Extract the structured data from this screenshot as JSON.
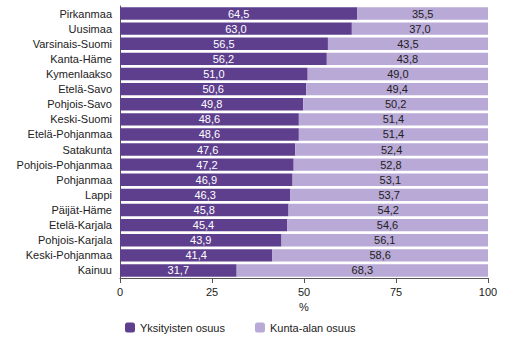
{
  "chart_data": {
    "type": "bar",
    "orientation": "horizontal",
    "stacked": true,
    "data_labels": true,
    "grid": false,
    "legend": "bottom",
    "xlabel": "%",
    "xlim": [
      0,
      100
    ],
    "xticks": [
      0,
      25,
      50,
      75,
      100
    ],
    "categories": [
      "Pirkanmaa",
      "Uusimaa",
      "Varsinais-Suomi",
      "Kanta-Häme",
      "Kymenlaakso",
      "Etelä-Savo",
      "Pohjois-Savo",
      "Keski-Suomi",
      "Etelä-Pohjanmaa",
      "Satakunta",
      "Pohjois-Pohjanmaa",
      "Pohjanmaa",
      "Lappi",
      "Päijät-Häme",
      "Etelä-Karjala",
      "Pohjois-Karjala",
      "Keski-Pohjanmaa",
      "Kainuu"
    ],
    "series": [
      {
        "name": "Yksityisten osuus",
        "color": "#5e3f8e",
        "values": [
          64.5,
          63.0,
          56.5,
          56.2,
          51.0,
          50.6,
          49.8,
          48.6,
          48.6,
          47.6,
          47.2,
          46.9,
          46.3,
          45.8,
          45.4,
          43.9,
          41.4,
          31.7
        ],
        "value_labels": [
          "64,5",
          "63,0",
          "56,5",
          "56,2",
          "51,0",
          "50,6",
          "49,8",
          "48,6",
          "48,6",
          "47,6",
          "47,2",
          "46,9",
          "46,3",
          "45,8",
          "45,4",
          "43,9",
          "41,4",
          "31,7"
        ]
      },
      {
        "name": "Kunta-alan osuus",
        "color": "#b9a9d6",
        "values": [
          35.5,
          37.0,
          43.5,
          43.8,
          49.0,
          49.4,
          50.2,
          51.4,
          51.4,
          52.4,
          52.8,
          53.1,
          53.7,
          54.2,
          54.6,
          56.1,
          58.6,
          68.3
        ],
        "value_labels": [
          "35,5",
          "37,0",
          "43,5",
          "43,8",
          "49,0",
          "49,4",
          "50,2",
          "51,4",
          "51,4",
          "52,4",
          "52,8",
          "53,1",
          "53,7",
          "54,2",
          "54,6",
          "56,1",
          "58,6",
          "68,3"
        ]
      }
    ]
  }
}
